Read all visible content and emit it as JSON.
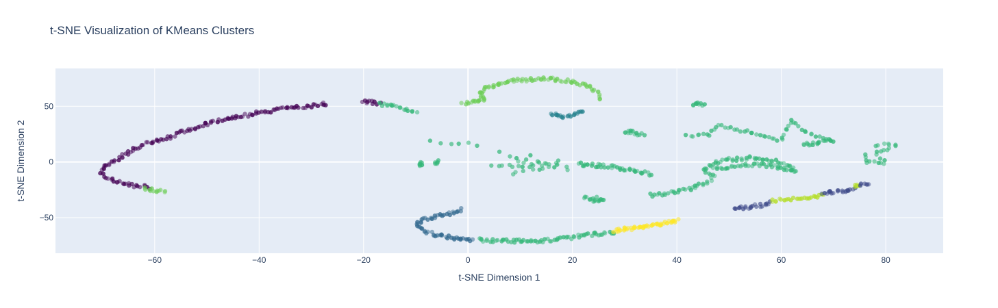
{
  "chart_data": {
    "type": "scatter",
    "title": "t-SNE Visualization of KMeans Clusters",
    "xlabel": "t-SNE Dimension 1",
    "ylabel": "t-SNE Dimension 2",
    "xlim": [
      -79,
      91
    ],
    "ylim": [
      -82,
      84
    ],
    "xticks": [
      -60,
      -40,
      -20,
      0,
      20,
      40,
      60,
      80
    ],
    "yticks": [
      -50,
      0,
      50
    ],
    "grid": true,
    "legend": "none",
    "background_color": "#e5ecf6",
    "colorscale": "viridis",
    "colors": {
      "c0": "#440154",
      "c1": "#3e4a89",
      "c2": "#31688e",
      "c3": "#26828e",
      "c4": "#1f9e89",
      "c5": "#35b779",
      "c6": "#6ece58",
      "c7": "#b5de2b",
      "c8": "#fde725"
    },
    "segments": [
      {
        "c": "c0",
        "pts": [
          [
            -27,
            52
          ],
          [
            -35,
            48
          ],
          [
            -45,
            40
          ],
          [
            -50,
            34
          ],
          [
            -55,
            27
          ],
          [
            -57,
            22
          ],
          [
            -62,
            16
          ],
          [
            -65,
            8
          ],
          [
            -67,
            3
          ],
          [
            -69.5,
            -3
          ],
          [
            -70.5,
            -10
          ],
          [
            -69,
            -15
          ],
          [
            -67,
            -18
          ],
          [
            -64,
            -21
          ],
          [
            -61,
            -23
          ]
        ],
        "n": 140
      },
      {
        "c": "c6",
        "pts": [
          [
            -62,
            -23
          ],
          [
            -60,
            -26
          ],
          [
            -58,
            -27
          ]
        ],
        "n": 12
      },
      {
        "c": "c0",
        "pts": [
          [
            -20,
            54
          ],
          [
            -17,
            53
          ]
        ],
        "n": 10
      },
      {
        "c": "c5",
        "pts": [
          [
            -17,
            52
          ],
          [
            -13,
            49
          ],
          [
            -10,
            45
          ]
        ],
        "n": 18
      },
      {
        "c": "c6",
        "pts": [
          [
            -1,
            53
          ],
          [
            3,
            55
          ],
          [
            2,
            62
          ],
          [
            4,
            68
          ],
          [
            9,
            73
          ],
          [
            15,
            75
          ],
          [
            20,
            72
          ],
          [
            23,
            68
          ],
          [
            25,
            62
          ],
          [
            25,
            56
          ]
        ],
        "n": 90
      },
      {
        "c": "c3",
        "pts": [
          [
            16,
            43
          ],
          [
            18,
            40
          ],
          [
            20,
            42
          ],
          [
            22,
            45
          ]
        ],
        "n": 22
      },
      {
        "c": "c5",
        "pts": [
          [
            -7,
            18
          ],
          [
            -4,
            17
          ],
          [
            -2,
            17
          ],
          [
            2,
            15
          ]
        ],
        "n": 6
      },
      {
        "c": "c5",
        "pts": [
          [
            -9,
            -2
          ],
          [
            -9,
            -1
          ]
        ],
        "n": 8
      },
      {
        "c": "c5",
        "pts": [
          [
            -6,
            -1
          ],
          [
            -6,
            0
          ]
        ],
        "n": 6
      },
      {
        "c": "c5",
        "pts": [
          [
            6,
            8
          ],
          [
            10,
            0
          ],
          [
            14,
            -8
          ],
          [
            18,
            2
          ],
          [
            8,
            -12
          ],
          [
            12,
            5
          ],
          [
            16,
            -4
          ],
          [
            4,
            -2
          ],
          [
            20,
            -6
          ],
          [
            9,
            4
          ]
        ],
        "n": 36
      },
      {
        "c": "c5",
        "pts": [
          [
            21,
            -2
          ],
          [
            27,
            -4
          ],
          [
            31,
            -7
          ],
          [
            35,
            -11
          ]
        ],
        "n": 40
      },
      {
        "c": "c5",
        "pts": [
          [
            24,
            -35
          ],
          [
            26,
            -33
          ],
          [
            22,
            -32
          ]
        ],
        "n": 16
      },
      {
        "c": "c5",
        "pts": [
          [
            32,
            27
          ],
          [
            30,
            28
          ],
          [
            34,
            24
          ]
        ],
        "n": 14
      },
      {
        "c": "c5",
        "pts": [
          [
            35,
            -30
          ],
          [
            40,
            -27
          ],
          [
            44,
            -22
          ],
          [
            46,
            -18
          ],
          [
            47,
            -14
          ],
          [
            45,
            -8
          ],
          [
            47,
            -1
          ],
          [
            50,
            2
          ],
          [
            55,
            4
          ],
          [
            58,
            2
          ],
          [
            61,
            -3
          ],
          [
            63,
            -8
          ],
          [
            60,
            -5
          ],
          [
            55,
            -2
          ],
          [
            50,
            -5
          ],
          [
            47,
            -6
          ]
        ],
        "n": 120
      },
      {
        "c": "c5",
        "pts": [
          [
            43,
            52
          ],
          [
            45,
            52
          ]
        ],
        "n": 10
      },
      {
        "c": "c5",
        "pts": [
          [
            42,
            23
          ],
          [
            46,
            24
          ],
          [
            48,
            33
          ],
          [
            52,
            28
          ],
          [
            56,
            25
          ],
          [
            60,
            20
          ],
          [
            62,
            38
          ],
          [
            64,
            30
          ],
          [
            66,
            24
          ],
          [
            70,
            20
          ],
          [
            64,
            15
          ],
          [
            68,
            18
          ]
        ],
        "n": 70
      },
      {
        "c": "c5",
        "pts": [
          [
            78,
            14
          ],
          [
            80,
            16
          ],
          [
            82,
            15
          ],
          [
            78,
            8
          ],
          [
            79,
            0
          ],
          [
            80,
            0
          ],
          [
            76,
            -1
          ],
          [
            76,
            8
          ]
        ],
        "n": 24
      },
      {
        "c": "c2",
        "pts": [
          [
            -1,
            -43
          ],
          [
            -5,
            -48
          ],
          [
            -9,
            -53
          ],
          [
            -10,
            -57
          ],
          [
            -8,
            -63
          ],
          [
            -5,
            -67
          ],
          [
            -2,
            -69
          ],
          [
            1,
            -70
          ]
        ],
        "n": 60
      },
      {
        "c": "c5",
        "pts": [
          [
            2,
            -70
          ],
          [
            8,
            -71
          ],
          [
            14,
            -71
          ],
          [
            18,
            -69
          ],
          [
            22,
            -66
          ],
          [
            26,
            -64
          ],
          [
            28,
            -63
          ]
        ],
        "n": 70
      },
      {
        "c": "c8",
        "pts": [
          [
            28,
            -62
          ],
          [
            34,
            -58
          ],
          [
            40,
            -53
          ]
        ],
        "n": 44
      },
      {
        "c": "c1",
        "pts": [
          [
            51,
            -42
          ],
          [
            56,
            -39
          ],
          [
            58,
            -36
          ]
        ],
        "n": 22
      },
      {
        "c": "c7",
        "pts": [
          [
            58,
            -35
          ],
          [
            64,
            -33
          ],
          [
            68,
            -30
          ]
        ],
        "n": 26
      },
      {
        "c": "c1",
        "pts": [
          [
            68,
            -28
          ],
          [
            72,
            -26
          ],
          [
            74,
            -24
          ]
        ],
        "n": 20
      },
      {
        "c": "c7",
        "pts": [
          [
            74,
            -22
          ],
          [
            75,
            -21
          ]
        ],
        "n": 6
      },
      {
        "c": "c1",
        "pts": [
          [
            75,
            -20
          ],
          [
            77,
            -20
          ]
        ],
        "n": 6
      }
    ]
  }
}
